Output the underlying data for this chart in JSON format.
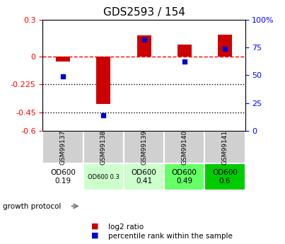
{
  "title": "GDS2593 / 154",
  "samples": [
    "GSM99137",
    "GSM99138",
    "GSM99139",
    "GSM99140",
    "GSM99141"
  ],
  "log2_ratio": [
    -0.04,
    -0.38,
    0.17,
    0.1,
    0.18
  ],
  "percentile_rank": [
    49,
    14,
    82,
    62,
    74
  ],
  "ylim_left": [
    -0.6,
    0.3
  ],
  "ylim_right": [
    0,
    100
  ],
  "yticks_left": [
    0.3,
    0,
    -0.225,
    -0.45,
    -0.6
  ],
  "yticks_right": [
    100,
    75,
    50,
    25,
    0
  ],
  "hlines_dotted": [
    -0.225,
    -0.45
  ],
  "hline_dashed": 0.0,
  "bar_color": "#cc0000",
  "dot_color": "#0000cc",
  "protocol_labels": [
    "OD600\n0.19",
    "OD600 0.3",
    "OD600\n0.41",
    "OD600\n0.49",
    "OD600\n0.6"
  ],
  "protocol_colors": [
    "#ffffff",
    "#ccffcc",
    "#ccffcc",
    "#66ff66",
    "#00cc00"
  ],
  "protocol_small_font": [
    false,
    true,
    false,
    false,
    false
  ],
  "bg_color": "#f0f0f0",
  "legend_red": "log2 ratio",
  "legend_blue": "percentile rank within the sample"
}
